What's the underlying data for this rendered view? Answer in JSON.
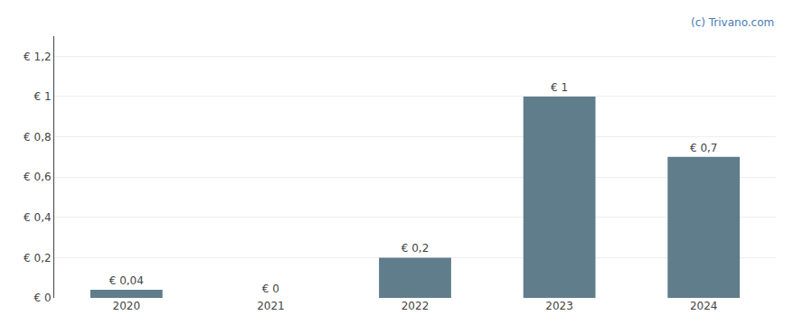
{
  "chart_data": {
    "type": "bar",
    "categories": [
      "2020",
      "2021",
      "2022",
      "2023",
      "2024"
    ],
    "values": [
      0.04,
      0.0,
      0.2,
      1.0,
      0.7
    ],
    "value_labels": [
      "€ 0,04",
      "€ 0",
      "€ 0,2",
      "€ 1",
      "€ 0,7"
    ],
    "data_labels": true,
    "color": "#607d8b",
    "ylim": [
      0,
      1.3
    ],
    "yticks": [
      {
        "value": 0,
        "label": "€ 0"
      },
      {
        "value": 0.2,
        "label": "€ 0,2"
      },
      {
        "value": 0.4,
        "label": "€ 0,4"
      },
      {
        "value": 0.6,
        "label": "€ 0,6"
      },
      {
        "value": 0.8,
        "label": "€ 0,8"
      },
      {
        "value": 1.0,
        "label": "€ 1"
      },
      {
        "value": 1.2,
        "label": "€ 1,2"
      }
    ],
    "grid": true,
    "annotations": [
      {
        "text": "(c) Trivano.com",
        "color": "#4a7ab5"
      }
    ]
  }
}
